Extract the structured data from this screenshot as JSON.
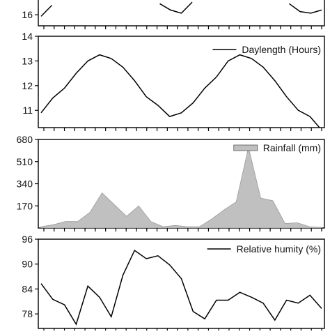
{
  "chart_data": [
    {
      "type": "line",
      "title": "",
      "xlabel": "",
      "ylabel": "",
      "yticks": [
        "16"
      ],
      "ylim": [
        15.3,
        17.2
      ],
      "series": [
        {
          "name": "",
          "color": "#000000",
          "values": [
            15.9,
            16.6,
            null,
            null,
            null,
            null,
            null,
            null,
            null,
            null,
            null,
            16.7,
            16.3,
            16.1,
            16.8,
            null,
            null,
            null,
            null,
            null,
            null,
            null,
            null,
            16.7,
            16.2,
            16.1,
            16.3
          ]
        }
      ],
      "grid": false,
      "legend": "none"
    },
    {
      "type": "line",
      "title": "",
      "xlabel": "",
      "ylabel": "",
      "yticks": [
        "11",
        "12",
        "13",
        "14"
      ],
      "ylim": [
        10.3,
        14
      ],
      "series": [
        {
          "name": "Daylength (Hours)",
          "color": "#000000",
          "values": [
            10.9,
            11.5,
            11.9,
            12.5,
            13.0,
            13.25,
            13.1,
            12.75,
            12.2,
            11.55,
            11.2,
            10.75,
            10.9,
            11.3,
            11.9,
            12.35,
            13.0,
            13.25,
            13.1,
            12.75,
            12.2,
            11.55,
            11.0,
            10.75,
            10.2
          ]
        }
      ],
      "grid": false,
      "legend": "top-right"
    },
    {
      "type": "area",
      "title": "",
      "xlabel": "",
      "ylabel": "",
      "yticks": [
        "170",
        "340",
        "510",
        "680"
      ],
      "ylim": [
        0,
        680
      ],
      "series": [
        {
          "name": "Rainfall (mm)",
          "color": "#c0c0c0",
          "values": [
            10,
            25,
            50,
            50,
            120,
            270,
            180,
            90,
            170,
            50,
            10,
            20,
            10,
            10,
            70,
            140,
            200,
            620,
            230,
            210,
            35,
            40,
            10,
            5
          ]
        }
      ],
      "grid": false,
      "legend": "top-right"
    },
    {
      "type": "line",
      "title": "",
      "xlabel": "",
      "ylabel": "",
      "yticks": [
        "78",
        "84",
        "90",
        "96"
      ],
      "ylim": [
        74.5,
        96
      ],
      "series": [
        {
          "name": "Relative humity (%)",
          "color": "#000000",
          "values": [
            85.3,
            81.5,
            80.2,
            75.5,
            84.7,
            82.0,
            77.3,
            87.3,
            93.3,
            91.3,
            92.0,
            89.8,
            86.5,
            78.6,
            76.8,
            81.3,
            81.3,
            83.2,
            82.0,
            80.6,
            76.5,
            81.3,
            80.6,
            82.5,
            79.3
          ]
        }
      ],
      "grid": false,
      "legend": "top-right"
    }
  ]
}
